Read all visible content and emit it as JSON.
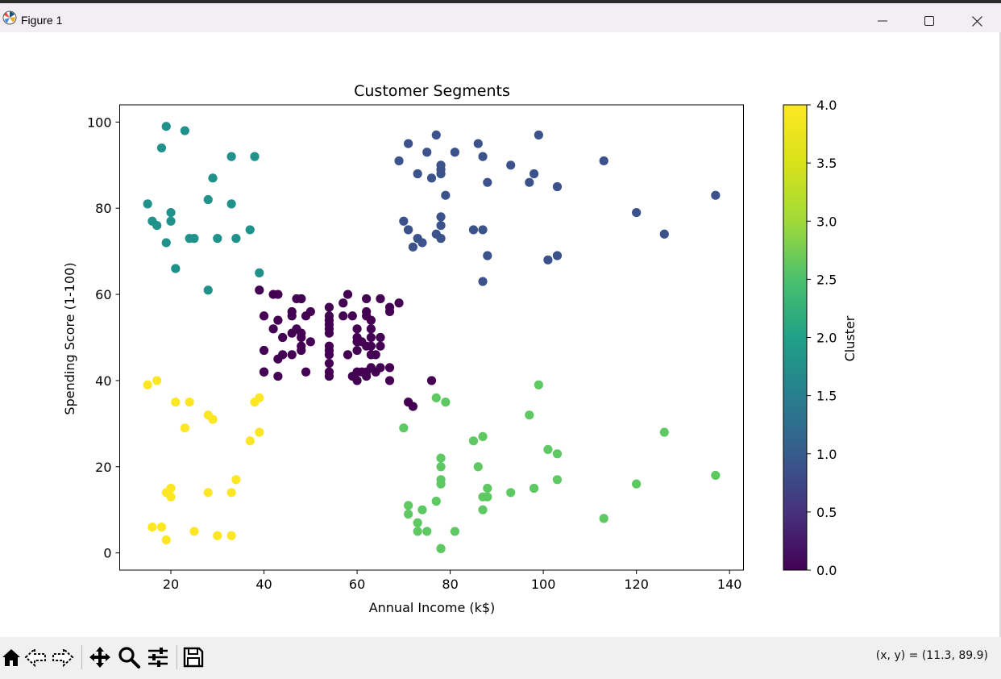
{
  "window": {
    "title": "Figure 1",
    "buttons": {
      "minimize": "minimize-icon",
      "maximize": "maximize-icon",
      "close": "close-icon"
    }
  },
  "toolbar": {
    "tools": [
      "home-icon",
      "back-icon",
      "forward-icon",
      "pan-icon",
      "zoom-icon",
      "configure-subplots-icon",
      "save-icon"
    ],
    "coords_text": "(x, y) = (11.3, 89.9)"
  },
  "chart_data": {
    "type": "scatter",
    "title": "Customer Segments",
    "xlabel": "Annual Income (k$)",
    "ylabel": "Spending Score (1-100)",
    "xlim": [
      9,
      143
    ],
    "ylim": [
      -4,
      104
    ],
    "xticks": [
      20,
      40,
      60,
      80,
      100,
      120,
      140
    ],
    "yticks": [
      0,
      20,
      40,
      60,
      80,
      100
    ],
    "colorbar": {
      "label": "Cluster",
      "range": [
        0,
        4
      ],
      "ticks": [
        "0.0",
        "0.5",
        "1.0",
        "1.5",
        "2.0",
        "2.5",
        "3.0",
        "3.5",
        "4.0"
      ],
      "colormap": "viridis"
    },
    "cluster_colors": {
      "0": "#440154",
      "1": "#3b528b",
      "2": "#21918c",
      "3": "#5ec962",
      "4": "#fde725"
    },
    "points": [
      [
        15,
        39,
        4
      ],
      [
        15,
        81,
        2
      ],
      [
        16,
        6,
        4
      ],
      [
        16,
        77,
        2
      ],
      [
        17,
        40,
        4
      ],
      [
        17,
        76,
        2
      ],
      [
        18,
        6,
        4
      ],
      [
        18,
        94,
        2
      ],
      [
        19,
        3,
        4
      ],
      [
        19,
        72,
        2
      ],
      [
        19,
        14,
        4
      ],
      [
        19,
        99,
        2
      ],
      [
        20,
        15,
        4
      ],
      [
        20,
        77,
        2
      ],
      [
        20,
        13,
        4
      ],
      [
        20,
        79,
        2
      ],
      [
        21,
        35,
        4
      ],
      [
        21,
        66,
        2
      ],
      [
        23,
        29,
        4
      ],
      [
        23,
        98,
        2
      ],
      [
        24,
        35,
        4
      ],
      [
        24,
        73,
        2
      ],
      [
        25,
        5,
        4
      ],
      [
        25,
        73,
        2
      ],
      [
        28,
        14,
        4
      ],
      [
        28,
        82,
        2
      ],
      [
        28,
        32,
        4
      ],
      [
        28,
        61,
        2
      ],
      [
        29,
        31,
        4
      ],
      [
        29,
        87,
        2
      ],
      [
        30,
        4,
        4
      ],
      [
        30,
        73,
        2
      ],
      [
        33,
        4,
        4
      ],
      [
        33,
        92,
        2
      ],
      [
        33,
        14,
        4
      ],
      [
        33,
        81,
        2
      ],
      [
        34,
        17,
        4
      ],
      [
        34,
        73,
        2
      ],
      [
        37,
        26,
        4
      ],
      [
        37,
        75,
        2
      ],
      [
        38,
        35,
        4
      ],
      [
        38,
        92,
        2
      ],
      [
        39,
        36,
        4
      ],
      [
        39,
        61,
        0
      ],
      [
        39,
        28,
        4
      ],
      [
        39,
        65,
        2
      ],
      [
        40,
        55,
        0
      ],
      [
        40,
        47,
        0
      ],
      [
        40,
        42,
        0
      ],
      [
        40,
        42,
        0
      ],
      [
        42,
        52,
        0
      ],
      [
        42,
        60,
        0
      ],
      [
        43,
        54,
        0
      ],
      [
        43,
        60,
        0
      ],
      [
        43,
        45,
        0
      ],
      [
        43,
        41,
        0
      ],
      [
        44,
        50,
        0
      ],
      [
        44,
        46,
        0
      ],
      [
        46,
        51,
        0
      ],
      [
        46,
        46,
        0
      ],
      [
        46,
        56,
        0
      ],
      [
        46,
        55,
        0
      ],
      [
        47,
        52,
        0
      ],
      [
        47,
        59,
        0
      ],
      [
        48,
        51,
        0
      ],
      [
        48,
        59,
        0
      ],
      [
        48,
        50,
        0
      ],
      [
        48,
        48,
        0
      ],
      [
        48,
        59,
        0
      ],
      [
        48,
        47,
        0
      ],
      [
        49,
        55,
        0
      ],
      [
        49,
        42,
        0
      ],
      [
        50,
        49,
        0
      ],
      [
        50,
        56,
        0
      ],
      [
        54,
        47,
        0
      ],
      [
        54,
        54,
        0
      ],
      [
        54,
        53,
        0
      ],
      [
        54,
        48,
        0
      ],
      [
        54,
        52,
        0
      ],
      [
        54,
        42,
        0
      ],
      [
        54,
        51,
        0
      ],
      [
        54,
        55,
        0
      ],
      [
        54,
        41,
        0
      ],
      [
        54,
        44,
        0
      ],
      [
        54,
        57,
        0
      ],
      [
        54,
        46,
        0
      ],
      [
        57,
        58,
        0
      ],
      [
        57,
        55,
        0
      ],
      [
        58,
        60,
        0
      ],
      [
        58,
        46,
        0
      ],
      [
        59,
        55,
        0
      ],
      [
        59,
        41,
        0
      ],
      [
        60,
        49,
        0
      ],
      [
        60,
        40,
        0
      ],
      [
        60,
        42,
        0
      ],
      [
        60,
        52,
        0
      ],
      [
        60,
        47,
        0
      ],
      [
        60,
        50,
        0
      ],
      [
        61,
        42,
        0
      ],
      [
        61,
        49,
        0
      ],
      [
        62,
        41,
        0
      ],
      [
        62,
        48,
        0
      ],
      [
        62,
        59,
        0
      ],
      [
        62,
        55,
        0
      ],
      [
        62,
        56,
        0
      ],
      [
        62,
        42,
        0
      ],
      [
        63,
        50,
        0
      ],
      [
        63,
        46,
        0
      ],
      [
        63,
        43,
        0
      ],
      [
        63,
        48,
        0
      ],
      [
        63,
        52,
        0
      ],
      [
        63,
        54,
        0
      ],
      [
        64,
        42,
        0
      ],
      [
        64,
        46,
        0
      ],
      [
        65,
        48,
        0
      ],
      [
        65,
        50,
        0
      ],
      [
        65,
        43,
        0
      ],
      [
        65,
        59,
        0
      ],
      [
        67,
        43,
        0
      ],
      [
        67,
        57,
        0
      ],
      [
        67,
        56,
        0
      ],
      [
        67,
        40,
        0
      ],
      [
        69,
        58,
        0
      ],
      [
        69,
        91,
        1
      ],
      [
        70,
        29,
        3
      ],
      [
        70,
        77,
        1
      ],
      [
        71,
        35,
        0
      ],
      [
        71,
        95,
        1
      ],
      [
        71,
        11,
        3
      ],
      [
        71,
        75,
        1
      ],
      [
        71,
        9,
        3
      ],
      [
        71,
        75,
        1
      ],
      [
        72,
        34,
        0
      ],
      [
        72,
        71,
        1
      ],
      [
        73,
        5,
        3
      ],
      [
        73,
        88,
        1
      ],
      [
        73,
        7,
        3
      ],
      [
        73,
        73,
        1
      ],
      [
        74,
        10,
        3
      ],
      [
        74,
        72,
        1
      ],
      [
        75,
        5,
        3
      ],
      [
        75,
        93,
        1
      ],
      [
        76,
        40,
        0
      ],
      [
        76,
        87,
        1
      ],
      [
        77,
        12,
        3
      ],
      [
        77,
        97,
        1
      ],
      [
        77,
        36,
        3
      ],
      [
        77,
        74,
        1
      ],
      [
        78,
        22,
        3
      ],
      [
        78,
        90,
        1
      ],
      [
        78,
        17,
        3
      ],
      [
        78,
        88,
        1
      ],
      [
        78,
        20,
        3
      ],
      [
        78,
        76,
        1
      ],
      [
        78,
        16,
        3
      ],
      [
        78,
        89,
        1
      ],
      [
        78,
        1,
        3
      ],
      [
        78,
        78,
        1
      ],
      [
        78,
        1,
        3
      ],
      [
        78,
        73,
        1
      ],
      [
        79,
        35,
        3
      ],
      [
        79,
        83,
        1
      ],
      [
        81,
        5,
        3
      ],
      [
        81,
        93,
        1
      ],
      [
        85,
        26,
        3
      ],
      [
        85,
        75,
        1
      ],
      [
        86,
        20,
        3
      ],
      [
        86,
        95,
        1
      ],
      [
        87,
        27,
        3
      ],
      [
        87,
        63,
        1
      ],
      [
        87,
        13,
        3
      ],
      [
        87,
        75,
        1
      ],
      [
        87,
        10,
        3
      ],
      [
        87,
        92,
        1
      ],
      [
        88,
        13,
        3
      ],
      [
        88,
        86,
        1
      ],
      [
        88,
        15,
        3
      ],
      [
        88,
        69,
        1
      ],
      [
        93,
        14,
        3
      ],
      [
        93,
        90,
        1
      ],
      [
        97,
        32,
        3
      ],
      [
        97,
        86,
        1
      ],
      [
        98,
        15,
        3
      ],
      [
        98,
        88,
        1
      ],
      [
        99,
        39,
        3
      ],
      [
        99,
        97,
        1
      ],
      [
        101,
        24,
        3
      ],
      [
        101,
        68,
        1
      ],
      [
        103,
        17,
        3
      ],
      [
        103,
        85,
        1
      ],
      [
        103,
        23,
        3
      ],
      [
        103,
        69,
        1
      ],
      [
        113,
        8,
        3
      ],
      [
        113,
        91,
        1
      ],
      [
        120,
        16,
        3
      ],
      [
        120,
        79,
        1
      ],
      [
        126,
        28,
        3
      ],
      [
        126,
        74,
        1
      ],
      [
        137,
        18,
        3
      ],
      [
        137,
        83,
        1
      ]
    ]
  }
}
